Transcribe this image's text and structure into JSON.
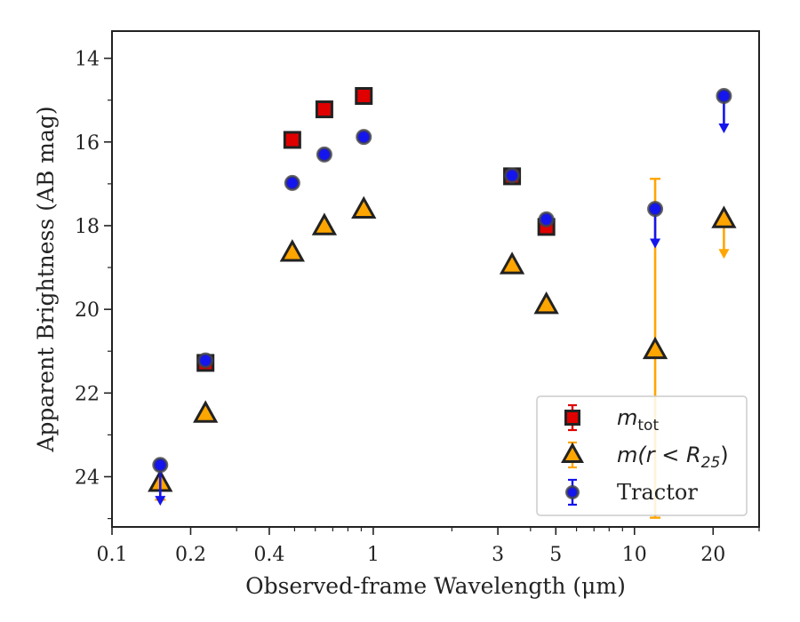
{
  "chart_data": {
    "type": "scatter",
    "xlabel": "Observed-frame Wavelength (μm)",
    "ylabel": "Apparent Brightness (AB mag)",
    "xscale": "log",
    "xlim": [
      0.1,
      30
    ],
    "ylim": [
      25.2,
      13.35
    ],
    "y_inverted": true,
    "grid": false,
    "legend_position": "lower-right",
    "x_ticks": [
      {
        "value": 0.1,
        "label": "0.1"
      },
      {
        "value": 0.2,
        "label": "0.2"
      },
      {
        "value": 0.4,
        "label": "0.4"
      },
      {
        "value": 1,
        "label": "1"
      },
      {
        "value": 3,
        "label": "3"
      },
      {
        "value": 5,
        "label": "5"
      },
      {
        "value": 10,
        "label": "10"
      },
      {
        "value": 20,
        "label": "20"
      }
    ],
    "y_ticks": [
      {
        "value": 14,
        "label": "14"
      },
      {
        "value": 16,
        "label": "16"
      },
      {
        "value": 18,
        "label": "18"
      },
      {
        "value": 20,
        "label": "20"
      },
      {
        "value": 22,
        "label": "22"
      },
      {
        "value": 24,
        "label": "24"
      }
    ],
    "series": [
      {
        "name": "m_tot",
        "legend_text": "m",
        "legend_sub": "tot",
        "marker": "square",
        "color": "#e00000",
        "edge_color": "#222222",
        "points": [
          {
            "x": 0.228,
            "y": 21.28
          },
          {
            "x": 0.49,
            "y": 15.95
          },
          {
            "x": 0.65,
            "y": 15.22
          },
          {
            "x": 0.92,
            "y": 14.9
          },
          {
            "x": 3.4,
            "y": 16.82
          },
          {
            "x": 4.6,
            "y": 18.03
          }
        ]
      },
      {
        "name": "m(r<R25)",
        "legend_text": "m(r < R",
        "legend_sub": "25",
        "legend_tail": ")",
        "marker": "triangle",
        "color": "#ffa500",
        "edge_color": "#222222",
        "points": [
          {
            "x": 0.153,
            "y": 24.15,
            "err_low": 0.45,
            "err_high": 0.4
          },
          {
            "x": 0.228,
            "y": 22.5
          },
          {
            "x": 0.49,
            "y": 18.65
          },
          {
            "x": 0.65,
            "y": 18.02
          },
          {
            "x": 0.92,
            "y": 17.62
          },
          {
            "x": 3.4,
            "y": 18.95
          },
          {
            "x": 4.6,
            "y": 19.9
          },
          {
            "x": 12.0,
            "y": 20.98,
            "err_low": 4.1,
            "err_high": 4.0
          },
          {
            "x": 22.0,
            "y": 17.85,
            "upper_limit_to": 18.75
          }
        ]
      },
      {
        "name": "Tractor",
        "legend_text": "Tractor",
        "marker": "circle",
        "color": "#1515ee",
        "edge_color": "#444444",
        "points": [
          {
            "x": 0.153,
            "y": 23.72,
            "upper_limit_to": 24.65
          },
          {
            "x": 0.228,
            "y": 21.22
          },
          {
            "x": 0.49,
            "y": 16.98
          },
          {
            "x": 0.65,
            "y": 16.3
          },
          {
            "x": 0.92,
            "y": 15.88
          },
          {
            "x": 3.4,
            "y": 16.8
          },
          {
            "x": 4.6,
            "y": 17.85
          },
          {
            "x": 12.0,
            "y": 17.6,
            "upper_limit_to": 18.5
          },
          {
            "x": 22.0,
            "y": 14.9,
            "upper_limit_to": 15.75
          }
        ]
      }
    ]
  }
}
